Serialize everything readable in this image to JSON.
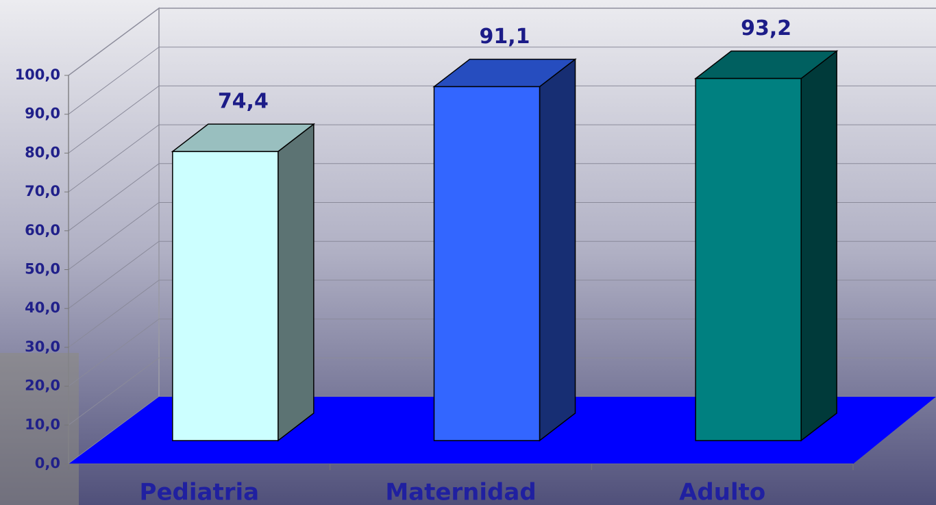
{
  "chart_data": {
    "type": "bar3d",
    "categories": [
      "Pediatria",
      "Maternidad",
      "Adulto"
    ],
    "values": [
      74.4,
      91.1,
      93.2
    ],
    "value_labels": [
      "74,4",
      "91,1",
      "93,2"
    ],
    "colors": [
      "#ccffff",
      "#3366ff",
      "#008080"
    ],
    "floor_color": "#0000ff",
    "ylim": [
      0,
      100
    ],
    "yticks": [
      {
        "value": 0,
        "label": "0,0"
      },
      {
        "value": 10,
        "label": "10,0"
      },
      {
        "value": 20,
        "label": "20,0"
      },
      {
        "value": 30,
        "label": "30,0"
      },
      {
        "value": 40,
        "label": "40,0"
      },
      {
        "value": 50,
        "label": "50,0"
      },
      {
        "value": 60,
        "label": "60,0"
      },
      {
        "value": 70,
        "label": "70,0"
      },
      {
        "value": 80,
        "label": "80,0"
      },
      {
        "value": 90,
        "label": "90,0"
      },
      {
        "value": 100,
        "label": "100,0"
      }
    ],
    "grid": true
  }
}
